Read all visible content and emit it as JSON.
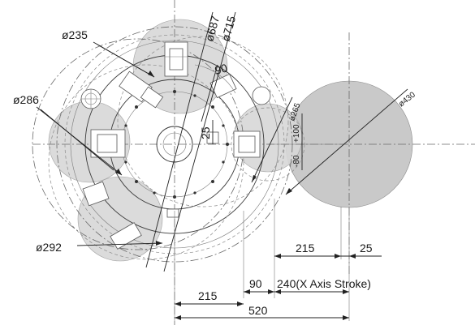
{
  "diagram": {
    "labels": {
      "d235": "ø235",
      "d286": "ø286",
      "d292": "ø292",
      "d687": "ø687",
      "d715": "ø715",
      "d265": "ø265",
      "d430": "ø430",
      "a90": "90",
      "v25": "25",
      "v100": "+100",
      "v80": "-80",
      "h215_right": "215",
      "h25": "25",
      "h90": "90",
      "h240": "240(X Axis Stroke)",
      "h215_left": "215",
      "h520": "520"
    }
  }
}
